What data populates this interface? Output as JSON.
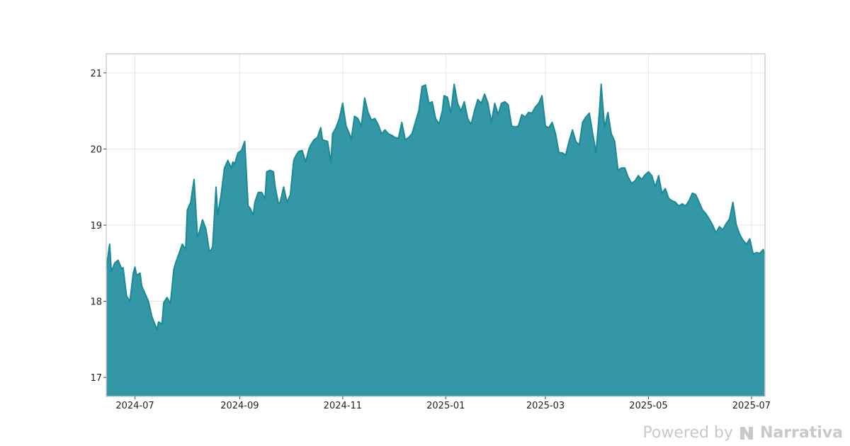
{
  "chart_data": {
    "type": "area",
    "title": "",
    "xlabel": "",
    "ylabel": "",
    "ylim": [
      16.75,
      21.25
    ],
    "yticks": [
      17,
      18,
      19,
      20,
      21
    ],
    "xlim": [
      "2024-06-14",
      "2025-07-09"
    ],
    "xticks": [
      "2024-07",
      "2024-09",
      "2024-11",
      "2025-01",
      "2025-03",
      "2025-05",
      "2025-07"
    ],
    "grid": true,
    "legend": "none",
    "colors": {
      "line": "#1a8a96",
      "fill": "#3397a5",
      "grid": "#e6e6e6",
      "frame": "#cfcfcf"
    },
    "series": [
      {
        "x": [
          "2024-06-14",
          "2024-06-16",
          "2024-06-17",
          "2024-06-19",
          "2024-06-21",
          "2024-06-23",
          "2024-06-24",
          "2024-06-26",
          "2024-06-28",
          "2024-06-30",
          "2024-07-01",
          "2024-07-02",
          "2024-07-04",
          "2024-07-05",
          "2024-07-07",
          "2024-07-09",
          "2024-07-11",
          "2024-07-14",
          "2024-07-15",
          "2024-07-17",
          "2024-07-18",
          "2024-07-20",
          "2024-07-22",
          "2024-07-24",
          "2024-07-25",
          "2024-07-27",
          "2024-07-29",
          "2024-07-31",
          "2024-08-01",
          "2024-08-03",
          "2024-08-05",
          "2024-08-07",
          "2024-08-08",
          "2024-08-10",
          "2024-08-12",
          "2024-08-14",
          "2024-08-15",
          "2024-08-16",
          "2024-08-18",
          "2024-08-19",
          "2024-08-21",
          "2024-08-23",
          "2024-08-25",
          "2024-08-27",
          "2024-08-28",
          "2024-08-29",
          "2024-08-31",
          "2024-09-02",
          "2024-09-04",
          "2024-09-06",
          "2024-09-07",
          "2024-09-09",
          "2024-09-10",
          "2024-09-12",
          "2024-09-14",
          "2024-09-16",
          "2024-09-17",
          "2024-09-19",
          "2024-09-21",
          "2024-09-22",
          "2024-09-24",
          "2024-09-25",
          "2024-09-27",
          "2024-09-29",
          "2024-10-01",
          "2024-10-03",
          "2024-10-04",
          "2024-10-06",
          "2024-10-08",
          "2024-10-10",
          "2024-10-12",
          "2024-10-13",
          "2024-10-15",
          "2024-10-17",
          "2024-10-19",
          "2024-10-20",
          "2024-10-23",
          "2024-10-25",
          "2024-10-26",
          "2024-10-28",
          "2024-10-30",
          "2024-11-01",
          "2024-11-03",
          "2024-11-05",
          "2024-11-06",
          "2024-11-08",
          "2024-11-10",
          "2024-11-12",
          "2024-11-14",
          "2024-11-16",
          "2024-11-18",
          "2024-11-20",
          "2024-11-22",
          "2024-11-24",
          "2024-11-26",
          "2024-11-28",
          "2024-11-30",
          "2024-12-02",
          "2024-12-04",
          "2024-12-06",
          "2024-12-08",
          "2024-12-10",
          "2024-12-12",
          "2024-12-14",
          "2024-12-16",
          "2024-12-18",
          "2024-12-20",
          "2024-12-22",
          "2024-12-24",
          "2024-12-26",
          "2024-12-28",
          "2024-12-30",
          "2024-12-31",
          "2025-01-02",
          "2025-01-04",
          "2025-01-06",
          "2025-01-08",
          "2025-01-10",
          "2025-01-12",
          "2025-01-14",
          "2025-01-16",
          "2025-01-18",
          "2025-01-20",
          "2025-01-22",
          "2025-01-24",
          "2025-01-26",
          "2025-01-28",
          "2025-01-30",
          "2025-02-01",
          "2025-02-03",
          "2025-02-05",
          "2025-02-07",
          "2025-02-09",
          "2025-02-11",
          "2025-02-13",
          "2025-02-15",
          "2025-02-17",
          "2025-02-19",
          "2025-02-21",
          "2025-02-23",
          "2025-02-25",
          "2025-02-27",
          "2025-03-01",
          "2025-03-03",
          "2025-03-05",
          "2025-03-07",
          "2025-03-09",
          "2025-03-11",
          "2025-03-13",
          "2025-03-15",
          "2025-03-17",
          "2025-03-19",
          "2025-03-21",
          "2025-03-23",
          "2025-03-25",
          "2025-03-27",
          "2025-03-29",
          "2025-03-31",
          "2025-04-02",
          "2025-04-03",
          "2025-04-05",
          "2025-04-07",
          "2025-04-09",
          "2025-04-11",
          "2025-04-13",
          "2025-04-15",
          "2025-04-17",
          "2025-04-19",
          "2025-04-21",
          "2025-04-23",
          "2025-04-25",
          "2025-04-27",
          "2025-04-29",
          "2025-05-01",
          "2025-05-03",
          "2025-05-05",
          "2025-05-07",
          "2025-05-09",
          "2025-05-11",
          "2025-05-13",
          "2025-05-15",
          "2025-05-17",
          "2025-05-19",
          "2025-05-21",
          "2025-05-23",
          "2025-05-25",
          "2025-05-27",
          "2025-05-29",
          "2025-05-31",
          "2025-06-02",
          "2025-06-04",
          "2025-06-06",
          "2025-06-08",
          "2025-06-10",
          "2025-06-12",
          "2025-06-14",
          "2025-06-16",
          "2025-06-18",
          "2025-06-20",
          "2025-06-22",
          "2025-06-24",
          "2025-06-26",
          "2025-06-28",
          "2025-06-30",
          "2025-07-02",
          "2025-07-04",
          "2025-07-06",
          "2025-07-08",
          "2025-07-09"
        ],
        "values": [
          18.43,
          18.75,
          18.39,
          18.5,
          18.54,
          18.43,
          18.44,
          18.07,
          18.0,
          18.37,
          18.45,
          18.34,
          18.37,
          18.2,
          18.1,
          18.0,
          17.8,
          17.63,
          17.73,
          17.7,
          17.98,
          18.05,
          17.97,
          18.42,
          18.5,
          18.62,
          18.75,
          18.68,
          19.2,
          19.3,
          19.6,
          18.85,
          18.9,
          19.07,
          18.95,
          18.66,
          18.67,
          18.72,
          19.5,
          19.13,
          19.4,
          19.75,
          19.85,
          19.75,
          19.83,
          19.8,
          19.95,
          19.98,
          20.1,
          19.25,
          19.23,
          19.13,
          19.3,
          19.43,
          19.43,
          19.35,
          19.7,
          19.72,
          19.7,
          19.5,
          19.28,
          19.3,
          19.5,
          19.3,
          19.4,
          19.85,
          19.9,
          19.97,
          19.98,
          19.83,
          20.0,
          20.05,
          20.12,
          20.15,
          20.28,
          20.12,
          20.1,
          19.82,
          20.2,
          20.28,
          20.4,
          20.6,
          20.3,
          20.2,
          20.12,
          20.43,
          20.4,
          20.3,
          20.67,
          20.48,
          20.38,
          20.4,
          20.32,
          20.2,
          20.25,
          20.2,
          20.18,
          20.15,
          20.14,
          20.35,
          20.12,
          20.15,
          20.2,
          20.35,
          20.5,
          20.82,
          20.84,
          20.6,
          20.62,
          20.4,
          20.33,
          20.5,
          20.7,
          20.68,
          20.47,
          20.85,
          20.6,
          20.5,
          20.62,
          20.4,
          20.32,
          20.5,
          20.65,
          20.6,
          20.72,
          20.6,
          20.35,
          20.6,
          20.45,
          20.6,
          20.62,
          20.58,
          20.3,
          20.29,
          20.3,
          20.45,
          20.42,
          20.48,
          20.47,
          20.55,
          20.6,
          20.7,
          20.3,
          20.28,
          20.35,
          20.2,
          19.95,
          19.95,
          19.92,
          20.1,
          20.25,
          20.1,
          20.05,
          20.35,
          20.42,
          20.47,
          20.2,
          19.95,
          20.5,
          20.85,
          20.28,
          20.48,
          20.2,
          20.1,
          19.72,
          19.75,
          19.75,
          19.63,
          19.55,
          19.58,
          19.65,
          19.6,
          19.66,
          19.7,
          19.65,
          19.5,
          19.65,
          19.42,
          19.48,
          19.35,
          19.32,
          19.3,
          19.25,
          19.28,
          19.25,
          19.32,
          19.42,
          19.4,
          19.3,
          19.2,
          19.15,
          19.08,
          19.0,
          18.9,
          18.98,
          18.94,
          19.02,
          19.08,
          19.3,
          19.0,
          18.88,
          18.8,
          18.75,
          18.82,
          18.62,
          18.64,
          18.63,
          18.68,
          18.6
        ]
      }
    ]
  },
  "brand": {
    "powered_by": "Powered by",
    "logo_text": "Narrativa"
  }
}
